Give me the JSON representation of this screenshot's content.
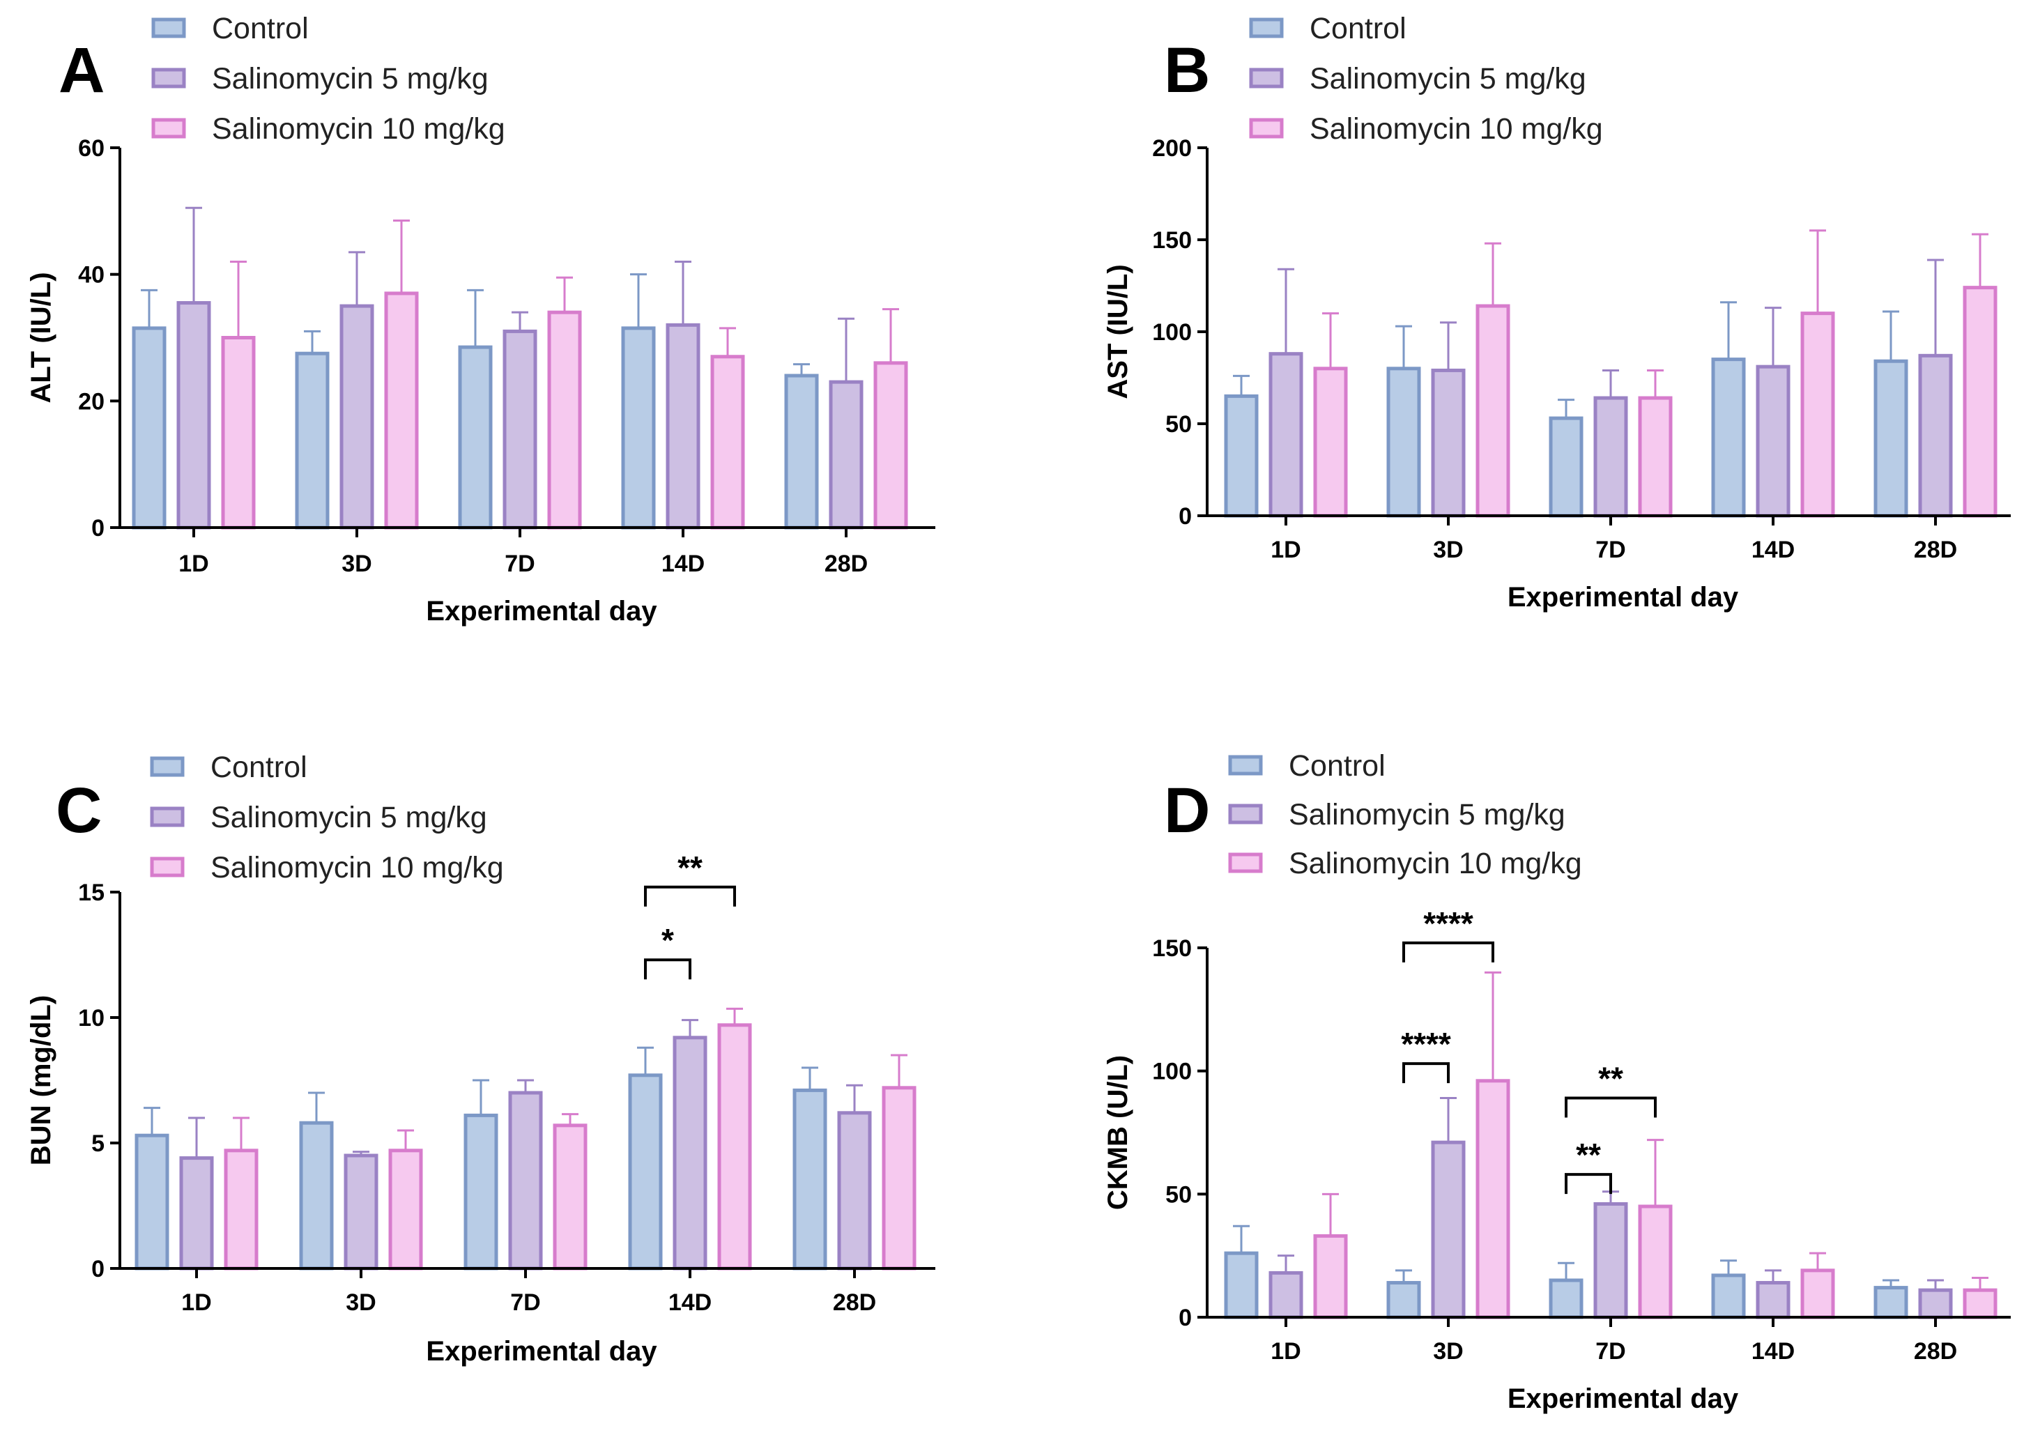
{
  "figure": {
    "legend_entries": [
      "Control",
      "Salinomycin 5 mg/kg",
      "Salinomycin 10 mg/kg"
    ],
    "colors": {
      "control_fill": "#b8cce6",
      "control_stroke": "#7c98c6",
      "sal5_fill": "#cdbfe3",
      "sal5_stroke": "#9a82c4",
      "sal10_fill": "#f6c9ef",
      "sal10_stroke": "#d77ccc",
      "axis": "#000000"
    }
  },
  "chart_data": [
    {
      "panel": "A",
      "type": "bar",
      "categories": [
        "1D",
        "3D",
        "7D",
        "14D",
        "28D"
      ],
      "xlabel": "Experimental day",
      "ylabel": "ALT (IU/L)",
      "ylim": [
        0,
        60
      ],
      "yticks": [
        0,
        20,
        40,
        60
      ],
      "series": [
        {
          "name": "Control",
          "values": [
            31.5,
            27.5,
            28.5,
            31.5,
            24.0
          ],
          "errors": [
            6.0,
            3.5,
            9.0,
            8.5,
            1.8
          ]
        },
        {
          "name": "Salinomycin 5 mg/kg",
          "values": [
            35.5,
            35.0,
            31.0,
            32.0,
            23.0
          ],
          "errors": [
            15.0,
            8.5,
            3.0,
            10.0,
            10.0
          ]
        },
        {
          "name": "Salinomycin 10 mg/kg",
          "values": [
            30.0,
            37.0,
            34.0,
            27.0,
            26.0
          ],
          "errors": [
            12.0,
            11.5,
            5.5,
            4.5,
            8.5
          ]
        }
      ],
      "significance": []
    },
    {
      "panel": "B",
      "type": "bar",
      "categories": [
        "1D",
        "3D",
        "7D",
        "14D",
        "28D"
      ],
      "xlabel": "Experimental day",
      "ylabel": "AST (IU/L)",
      "ylim": [
        0,
        200
      ],
      "yticks": [
        0,
        50,
        100,
        150,
        200
      ],
      "series": [
        {
          "name": "Control",
          "values": [
            65,
            80,
            53,
            85,
            84
          ],
          "errors": [
            11,
            23,
            10,
            31,
            27
          ]
        },
        {
          "name": "Salinomycin 5 mg/kg",
          "values": [
            88,
            79,
            64,
            81,
            87
          ],
          "errors": [
            46,
            26,
            15,
            32,
            52
          ]
        },
        {
          "name": "Salinomycin 10 mg/kg",
          "values": [
            80,
            114,
            64,
            110,
            124
          ],
          "errors": [
            30,
            34,
            15,
            45,
            29
          ]
        }
      ],
      "significance": []
    },
    {
      "panel": "C",
      "type": "bar",
      "categories": [
        "1D",
        "3D",
        "7D",
        "14D",
        "28D"
      ],
      "xlabel": "Experimental day",
      "ylabel": "BUN (mg/dL)",
      "ylim": [
        0,
        15
      ],
      "yticks": [
        0,
        5,
        10,
        15
      ],
      "series": [
        {
          "name": "Control",
          "values": [
            5.3,
            5.8,
            6.1,
            7.7,
            7.1
          ],
          "errors": [
            1.1,
            1.2,
            1.4,
            1.1,
            0.9
          ]
        },
        {
          "name": "Salinomycin 5 mg/kg",
          "values": [
            4.4,
            4.5,
            7.0,
            9.2,
            6.2
          ],
          "errors": [
            1.6,
            0.15,
            0.5,
            0.7,
            1.1
          ]
        },
        {
          "name": "Salinomycin 10 mg/kg",
          "values": [
            4.7,
            4.7,
            5.7,
            9.7,
            7.2
          ],
          "errors": [
            1.3,
            0.8,
            0.45,
            0.65,
            1.3
          ]
        }
      ],
      "significance": [
        {
          "category": "14D",
          "from": 0,
          "to": 1,
          "label": "*",
          "level": 12.3
        },
        {
          "category": "14D",
          "from": 0,
          "to": 2,
          "label": "**",
          "level": 15.2
        }
      ]
    },
    {
      "panel": "D",
      "type": "bar",
      "categories": [
        "1D",
        "3D",
        "7D",
        "14D",
        "28D"
      ],
      "xlabel": "Experimental day",
      "ylabel": "CKMB (U/L)",
      "ylim": [
        0,
        150
      ],
      "yticks": [
        0,
        50,
        100,
        150
      ],
      "series": [
        {
          "name": "Control",
          "values": [
            26,
            14,
            15,
            17,
            12
          ],
          "errors": [
            11,
            5,
            7,
            6,
            3
          ]
        },
        {
          "name": "Salinomycin 5 mg/kg",
          "values": [
            18,
            71,
            46,
            14,
            11
          ],
          "errors": [
            7,
            18,
            5,
            5,
            4
          ]
        },
        {
          "name": "Salinomycin 10 mg/kg",
          "values": [
            33,
            96,
            45,
            19,
            11
          ],
          "errors": [
            17,
            44,
            27,
            7,
            5
          ]
        }
      ],
      "significance": [
        {
          "category": "3D",
          "from": 0,
          "to": 1,
          "label": "****",
          "level": 103
        },
        {
          "category": "3D",
          "from": 0,
          "to": 2,
          "label": "****",
          "level": 152
        },
        {
          "category": "7D",
          "from": 0,
          "to": 1,
          "label": "**",
          "level": 58
        },
        {
          "category": "7D",
          "from": 0,
          "to": 2,
          "label": "**",
          "level": 89
        }
      ]
    }
  ]
}
